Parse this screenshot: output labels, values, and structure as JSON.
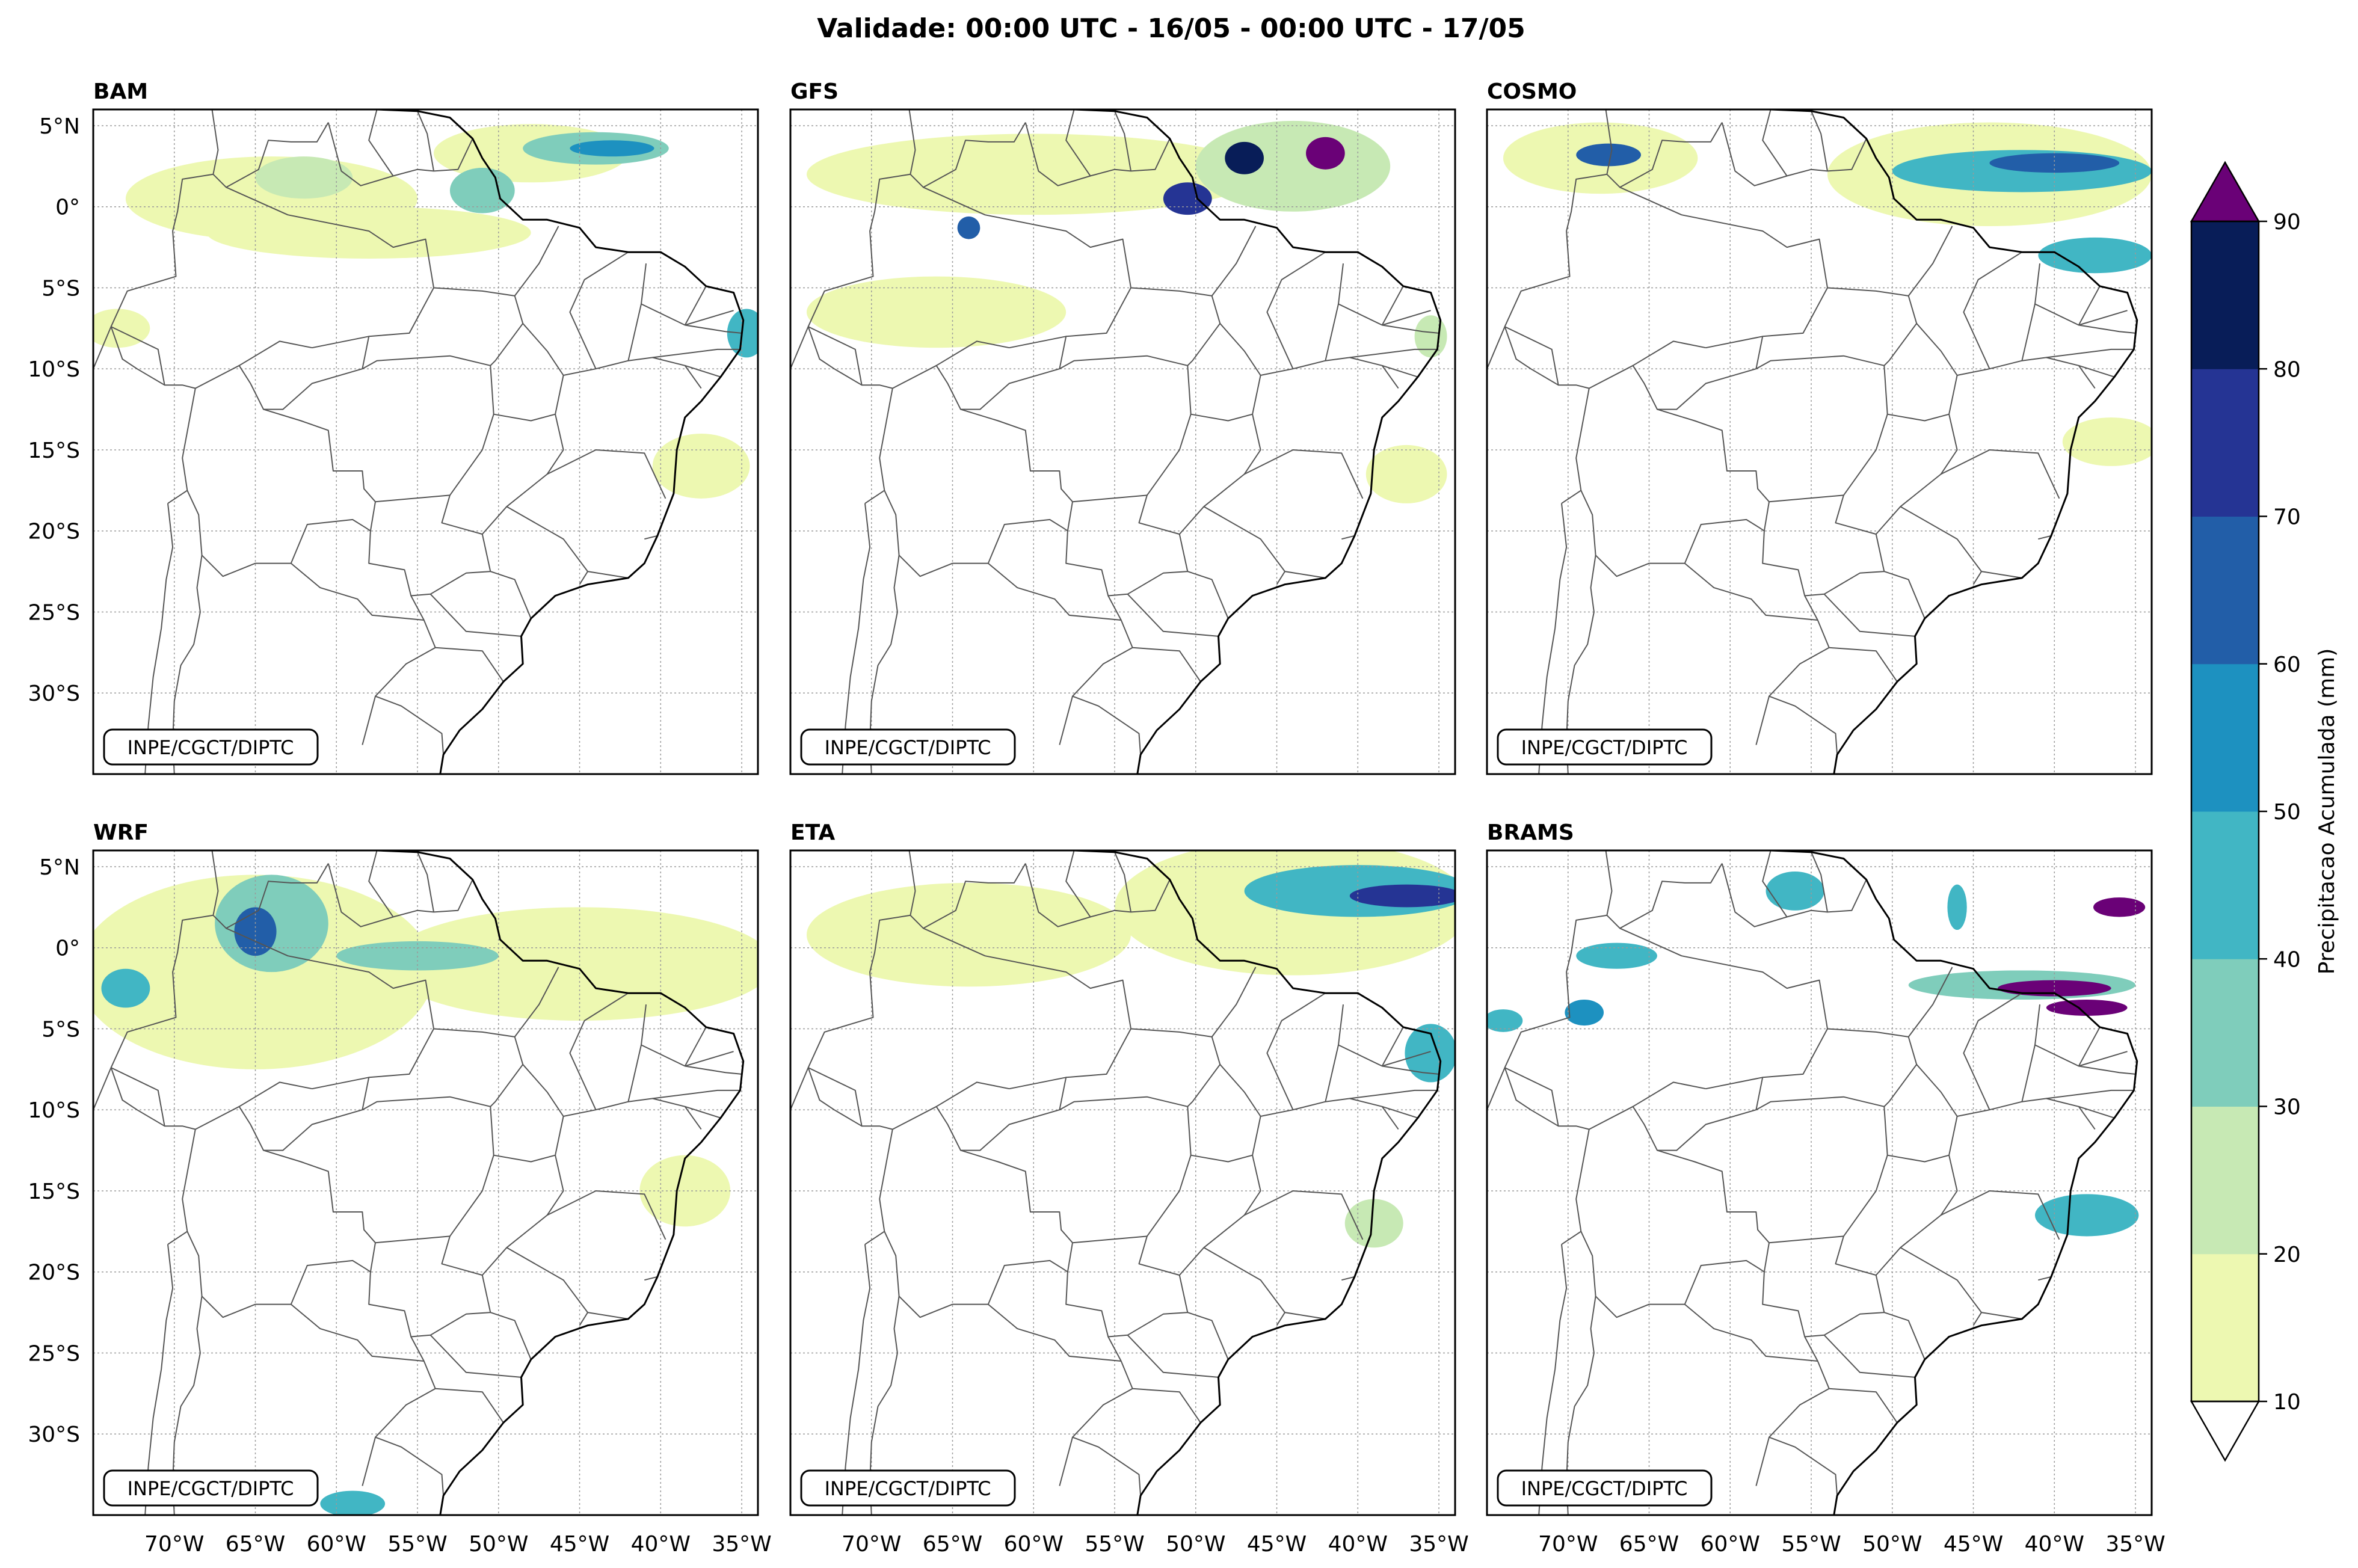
{
  "title": "Validade: 00:00 UTC - 16/05 - 00:00 UTC - 17/05",
  "credit": "INPE/CGCT/DIPTC",
  "panels": [
    {
      "name": "BAM"
    },
    {
      "name": "GFS"
    },
    {
      "name": "COSMO"
    },
    {
      "name": "WRF"
    },
    {
      "name": "ETA"
    },
    {
      "name": "BRAMS"
    }
  ],
  "lat_ticks": [
    "5°N",
    "0°",
    "5°S",
    "10°S",
    "15°S",
    "20°S",
    "25°S",
    "30°S"
  ],
  "lon_ticks": [
    "70°W",
    "65°W",
    "60°W",
    "55°W",
    "50°W",
    "45°W",
    "40°W",
    "35°W"
  ],
  "colorbar": {
    "label": "Precipitacao Acumulada (mm)",
    "ticks": [
      "10",
      "20",
      "30",
      "40",
      "50",
      "60",
      "70",
      "80",
      "90"
    ],
    "levels": [
      10,
      20,
      30,
      40,
      50,
      60,
      70,
      80,
      90
    ],
    "colors": [
      "#edf8b1",
      "#c7e9b4",
      "#7fcdbb",
      "#41b6c4",
      "#1d91c0",
      "#225ea8",
      "#253494",
      "#081d58"
    ],
    "over_color": "#6a0177",
    "under_color": "#ffffff"
  },
  "map_extent": {
    "lon": [
      -75,
      -34
    ],
    "lat": [
      -35,
      6
    ]
  },
  "precip_fields": {
    "BAM": [
      {
        "lon": -48,
        "lat": 3.3,
        "rx": 6,
        "ry": 1.8,
        "v": 15
      },
      {
        "lon": -44,
        "lat": 3.6,
        "rx": 4.5,
        "ry": 1.0,
        "v": 35
      },
      {
        "lon": -43,
        "lat": 3.6,
        "rx": 2.6,
        "ry": 0.5,
        "v": 55
      },
      {
        "lon": -64,
        "lat": 0.5,
        "rx": 9,
        "ry": 2.6,
        "v": 15
      },
      {
        "lon": -58,
        "lat": -1.6,
        "rx": 10,
        "ry": 1.6,
        "v": 15
      },
      {
        "lon": -62,
        "lat": 1.8,
        "rx": 3,
        "ry": 1.3,
        "v": 25
      },
      {
        "lon": -51,
        "lat": 1,
        "rx": 2,
        "ry": 1.4,
        "v": 35
      },
      {
        "lon": -73.5,
        "lat": -7.5,
        "rx": 2,
        "ry": 1.2,
        "v": 15
      },
      {
        "lon": -34.7,
        "lat": -7.8,
        "rx": 1.2,
        "ry": 1.5,
        "v": 45
      },
      {
        "lon": -37.5,
        "lat": -16,
        "rx": 3,
        "ry": 2,
        "v": 15
      }
    ],
    "GFS": [
      {
        "lon": -60,
        "lat": 2.0,
        "rx": 14,
        "ry": 2.5,
        "v": 15
      },
      {
        "lon": -66,
        "lat": -6.5,
        "rx": 8,
        "ry": 2.2,
        "v": 15
      },
      {
        "lon": -44,
        "lat": 2.5,
        "rx": 6,
        "ry": 2.8,
        "v": 22
      },
      {
        "lon": -42,
        "lat": 3.3,
        "rx": 1.2,
        "ry": 1.0,
        "v": 95
      },
      {
        "lon": -47,
        "lat": 3.0,
        "rx": 1.2,
        "ry": 1.0,
        "v": 85
      },
      {
        "lon": -50.5,
        "lat": 0.5,
        "rx": 1.5,
        "ry": 1.0,
        "v": 75
      },
      {
        "lon": -64,
        "lat": -1.3,
        "rx": 0.7,
        "ry": 0.7,
        "v": 65
      },
      {
        "lon": -37,
        "lat": -16.5,
        "rx": 2.5,
        "ry": 1.8,
        "v": 15
      },
      {
        "lon": -35.5,
        "lat": -8,
        "rx": 1,
        "ry": 1.3,
        "v": 25
      }
    ],
    "COSMO": [
      {
        "lon": -44,
        "lat": 2.0,
        "rx": 10,
        "ry": 3.2,
        "v": 15
      },
      {
        "lon": -42,
        "lat": 2.2,
        "rx": 8,
        "ry": 1.3,
        "v": 40
      },
      {
        "lon": -40,
        "lat": 2.7,
        "rx": 4,
        "ry": 0.6,
        "v": 68
      },
      {
        "lon": -37.5,
        "lat": -3,
        "rx": 3.5,
        "ry": 1.1,
        "v": 40
      },
      {
        "lon": -68,
        "lat": 3,
        "rx": 6,
        "ry": 2.2,
        "v": 15
      },
      {
        "lon": -67.5,
        "lat": 3.2,
        "rx": 2,
        "ry": 0.7,
        "v": 60
      },
      {
        "lon": -36.5,
        "lat": -14.5,
        "rx": 3,
        "ry": 1.5,
        "v": 15
      }
    ],
    "WRF": [
      {
        "lon": -65,
        "lat": -1.5,
        "rx": 11,
        "ry": 6,
        "v": 15
      },
      {
        "lon": -45,
        "lat": -1,
        "rx": 12,
        "ry": 3.5,
        "v": 15
      },
      {
        "lon": -64,
        "lat": 1.5,
        "rx": 3.5,
        "ry": 3,
        "v": 35
      },
      {
        "lon": -65,
        "lat": 1.0,
        "rx": 1.3,
        "ry": 1.5,
        "v": 65
      },
      {
        "lon": -55,
        "lat": -0.5,
        "rx": 5,
        "ry": 0.9,
        "v": 35
      },
      {
        "lon": -73,
        "lat": -2.5,
        "rx": 1.5,
        "ry": 1.2,
        "v": 45
      },
      {
        "lon": -38.5,
        "lat": -15,
        "rx": 2.8,
        "ry": 2.2,
        "v": 15
      },
      {
        "lon": -59,
        "lat": -34.3,
        "rx": 2,
        "ry": 0.8,
        "v": 40
      }
    ],
    "ETA": [
      {
        "lon": -44,
        "lat": 2.5,
        "rx": 11,
        "ry": 4.2,
        "v": 15
      },
      {
        "lon": -40,
        "lat": 3.5,
        "rx": 7,
        "ry": 1.6,
        "v": 40
      },
      {
        "lon": -37,
        "lat": 3.2,
        "rx": 3.5,
        "ry": 0.7,
        "v": 72
      },
      {
        "lon": -64,
        "lat": 0.8,
        "rx": 10,
        "ry": 3.2,
        "v": 15
      },
      {
        "lon": -35.5,
        "lat": -6.5,
        "rx": 1.6,
        "ry": 1.8,
        "v": 45
      },
      {
        "lon": -39,
        "lat": -17,
        "rx": 1.8,
        "ry": 1.5,
        "v": 25
      }
    ],
    "BRAMS": [
      {
        "lon": -42,
        "lat": -2.3,
        "rx": 7,
        "ry": 0.9,
        "v": 35
      },
      {
        "lon": -40,
        "lat": -2.5,
        "rx": 3.5,
        "ry": 0.5,
        "v": 95
      },
      {
        "lon": -38,
        "lat": -3.7,
        "rx": 2.5,
        "ry": 0.5,
        "v": 95
      },
      {
        "lon": -36,
        "lat": 2.5,
        "rx": 1.6,
        "ry": 0.6,
        "v": 95
      },
      {
        "lon": -67,
        "lat": -0.5,
        "rx": 2.5,
        "ry": 0.8,
        "v": 45
      },
      {
        "lon": -69,
        "lat": -4,
        "rx": 1.2,
        "ry": 0.8,
        "v": 55
      },
      {
        "lon": -56,
        "lat": 3.5,
        "rx": 1.8,
        "ry": 1.2,
        "v": 45
      },
      {
        "lon": -38,
        "lat": -16.5,
        "rx": 3.2,
        "ry": 1.3,
        "v": 45
      },
      {
        "lon": -74,
        "lat": -4.5,
        "rx": 1.2,
        "ry": 0.7,
        "v": 40
      },
      {
        "lon": -46,
        "lat": 2.5,
        "rx": 0.6,
        "ry": 1.4,
        "v": 45
      }
    ]
  }
}
